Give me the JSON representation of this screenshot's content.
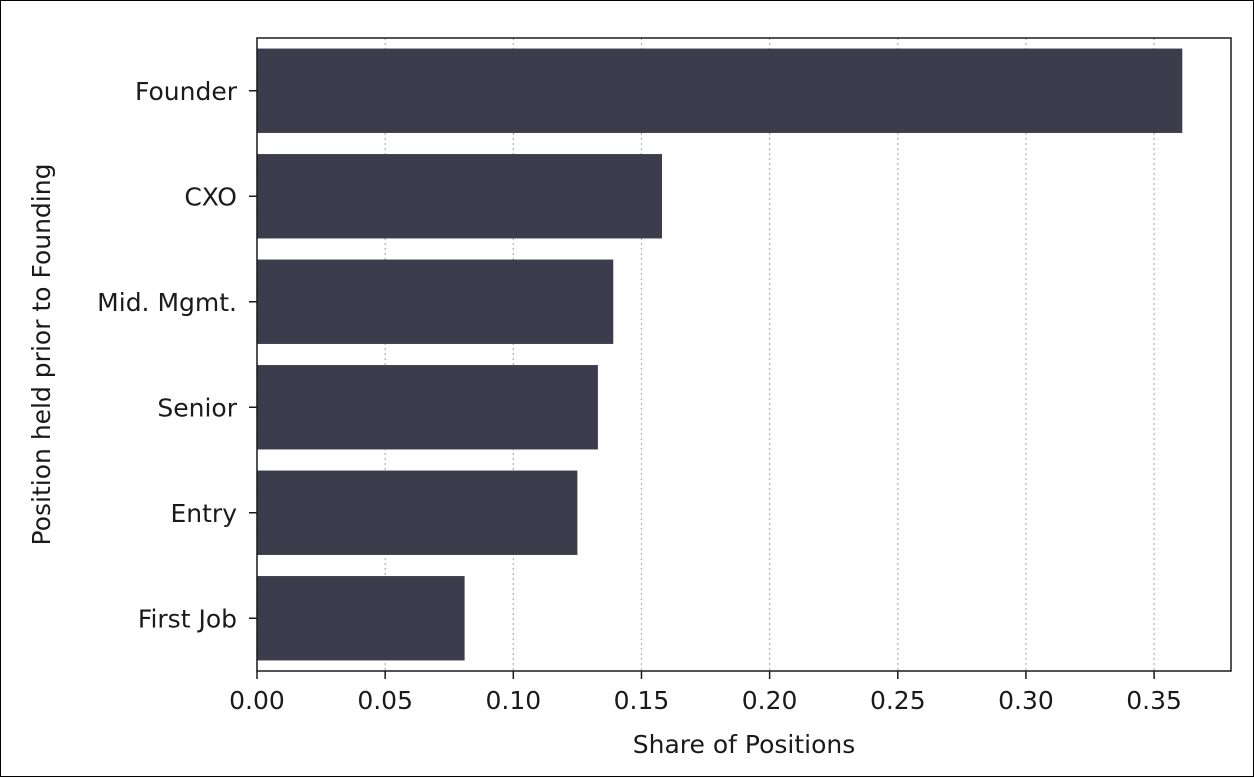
{
  "chart_data": {
    "type": "bar",
    "orientation": "horizontal",
    "title": "",
    "xlabel": "Share of Positions",
    "ylabel": "Position held prior to Founding",
    "categories": [
      "Founder",
      "CXO",
      "Mid. Mgmt.",
      "Senior",
      "Entry",
      "First Job"
    ],
    "values": [
      0.361,
      0.158,
      0.139,
      0.133,
      0.125,
      0.081
    ],
    "xlim": [
      0.0,
      0.38
    ],
    "xticks": [
      0.0,
      0.05,
      0.1,
      0.15,
      0.2,
      0.25,
      0.3,
      0.35
    ],
    "xtick_labels": [
      "0.00",
      "0.05",
      "0.10",
      "0.15",
      "0.20",
      "0.25",
      "0.30",
      "0.35"
    ],
    "grid": "x-dotted",
    "bar_color": "#3d3c4d"
  }
}
